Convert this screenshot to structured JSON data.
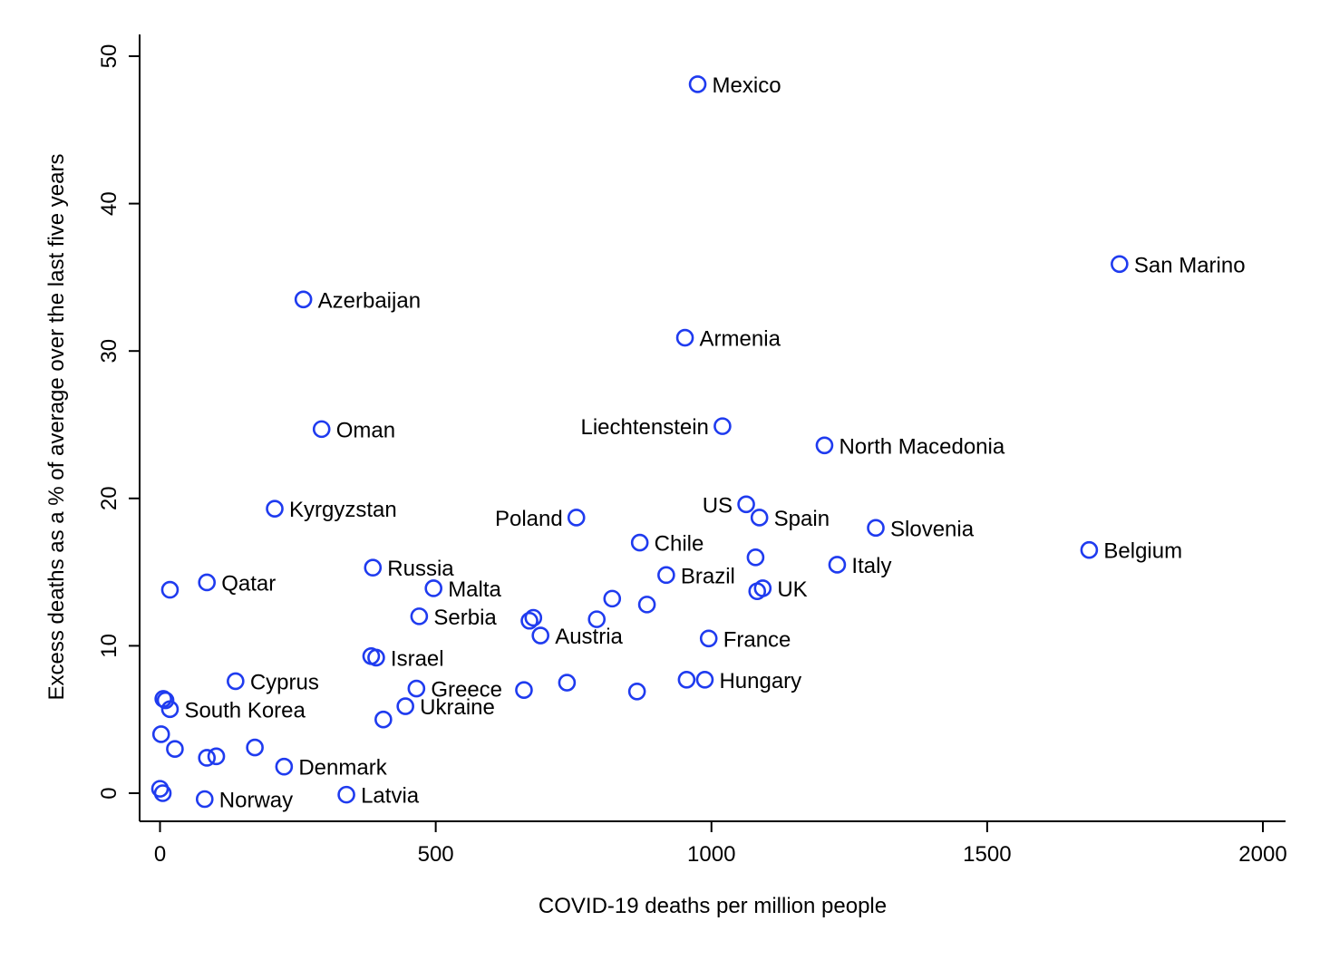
{
  "chart_data": {
    "type": "scatter",
    "xlabel": "COVID-19 deaths per million people",
    "ylabel": "Excess deaths as a % of average over the last five years",
    "xlim": [
      0,
      2000
    ],
    "ylim": [
      0,
      50
    ],
    "xticks": [
      0,
      500,
      1000,
      1500,
      2000
    ],
    "yticks": [
      0,
      10,
      20,
      30,
      40,
      50
    ],
    "grid": false,
    "marker_color": "#1f3bef",
    "points": [
      {
        "x": 975,
        "y": 48.1,
        "label": "Mexico",
        "label_side": "right"
      },
      {
        "x": 1740,
        "y": 35.9,
        "label": "San Marino",
        "label_side": "right"
      },
      {
        "x": 260,
        "y": 33.5,
        "label": "Azerbaijan",
        "label_side": "right"
      },
      {
        "x": 952,
        "y": 30.9,
        "label": "Armenia",
        "label_side": "right"
      },
      {
        "x": 1020,
        "y": 24.9,
        "label": "Liechtenstein",
        "label_side": "left"
      },
      {
        "x": 293,
        "y": 24.7,
        "label": "Oman",
        "label_side": "right"
      },
      {
        "x": 1205,
        "y": 23.6,
        "label": "North Macedonia",
        "label_side": "right"
      },
      {
        "x": 1063,
        "y": 19.6,
        "label": "US",
        "label_side": "left"
      },
      {
        "x": 208,
        "y": 19.3,
        "label": "Kyrgyzstan",
        "label_side": "right"
      },
      {
        "x": 1087,
        "y": 18.7,
        "label": "Spain",
        "label_side": "right"
      },
      {
        "x": 755,
        "y": 18.7,
        "label": "Poland",
        "label_side": "left"
      },
      {
        "x": 1298,
        "y": 18.0,
        "label": "Slovenia",
        "label_side": "right"
      },
      {
        "x": 870,
        "y": 17.0,
        "label": "Chile",
        "label_side": "right"
      },
      {
        "x": 1685,
        "y": 16.5,
        "label": "Belgium",
        "label_side": "right"
      },
      {
        "x": 1080,
        "y": 16.0,
        "label": "",
        "label_side": "right"
      },
      {
        "x": 1228,
        "y": 15.5,
        "label": "Italy",
        "label_side": "right"
      },
      {
        "x": 386,
        "y": 15.3,
        "label": "Russia",
        "label_side": "right"
      },
      {
        "x": 918,
        "y": 14.8,
        "label": "Brazil",
        "label_side": "right"
      },
      {
        "x": 85,
        "y": 14.3,
        "label": "Qatar",
        "label_side": "right"
      },
      {
        "x": 1093,
        "y": 13.9,
        "label": "UK",
        "label_side": "right"
      },
      {
        "x": 496,
        "y": 13.9,
        "label": "Malta",
        "label_side": "right"
      },
      {
        "x": 18,
        "y": 13.8,
        "label": "",
        "label_side": "right"
      },
      {
        "x": 1083,
        "y": 13.7,
        "label": "",
        "label_side": "right"
      },
      {
        "x": 820,
        "y": 13.2,
        "label": "",
        "label_side": "right"
      },
      {
        "x": 883,
        "y": 12.8,
        "label": "",
        "label_side": "right"
      },
      {
        "x": 470,
        "y": 12.0,
        "label": "Serbia",
        "label_side": "right"
      },
      {
        "x": 792,
        "y": 11.8,
        "label": "",
        "label_side": "right"
      },
      {
        "x": 677,
        "y": 11.9,
        "label": "",
        "label_side": "right"
      },
      {
        "x": 670,
        "y": 11.7,
        "label": "",
        "label_side": "right"
      },
      {
        "x": 690,
        "y": 10.7,
        "label": "Austria",
        "label_side": "right"
      },
      {
        "x": 995,
        "y": 10.5,
        "label": "France",
        "label_side": "right"
      },
      {
        "x": 383,
        "y": 9.3,
        "label": "",
        "label_side": "right"
      },
      {
        "x": 392,
        "y": 9.2,
        "label": "Israel",
        "label_side": "right"
      },
      {
        "x": 955,
        "y": 7.7,
        "label": "",
        "label_side": "right"
      },
      {
        "x": 988,
        "y": 7.7,
        "label": "Hungary",
        "label_side": "right"
      },
      {
        "x": 137,
        "y": 7.6,
        "label": "Cyprus",
        "label_side": "right"
      },
      {
        "x": 738,
        "y": 7.5,
        "label": "",
        "label_side": "right"
      },
      {
        "x": 465,
        "y": 7.1,
        "label": "Greece",
        "label_side": "right"
      },
      {
        "x": 660,
        "y": 7.0,
        "label": "",
        "label_side": "right"
      },
      {
        "x": 865,
        "y": 6.9,
        "label": "",
        "label_side": "right"
      },
      {
        "x": 6,
        "y": 6.4,
        "label": "",
        "label_side": "right"
      },
      {
        "x": 10,
        "y": 6.3,
        "label": "",
        "label_side": "right"
      },
      {
        "x": 445,
        "y": 5.9,
        "label": "Ukraine",
        "label_side": "right"
      },
      {
        "x": 18,
        "y": 5.7,
        "label": "South Korea",
        "label_side": "right"
      },
      {
        "x": 405,
        "y": 5.0,
        "label": "",
        "label_side": "right"
      },
      {
        "x": 2,
        "y": 4.0,
        "label": "",
        "label_side": "right"
      },
      {
        "x": 27,
        "y": 3.0,
        "label": "",
        "label_side": "right"
      },
      {
        "x": 172,
        "y": 3.1,
        "label": "",
        "label_side": "right"
      },
      {
        "x": 85,
        "y": 2.4,
        "label": "",
        "label_side": "right"
      },
      {
        "x": 102,
        "y": 2.5,
        "label": "",
        "label_side": "right"
      },
      {
        "x": 225,
        "y": 1.8,
        "label": "Denmark",
        "label_side": "right"
      },
      {
        "x": 0,
        "y": 0.3,
        "label": "",
        "label_side": "right"
      },
      {
        "x": 5,
        "y": 0.0,
        "label": "",
        "label_side": "right"
      },
      {
        "x": 338,
        "y": -0.1,
        "label": "Latvia",
        "label_side": "right"
      },
      {
        "x": 81,
        "y": -0.4,
        "label": "Norway",
        "label_side": "right"
      }
    ]
  }
}
